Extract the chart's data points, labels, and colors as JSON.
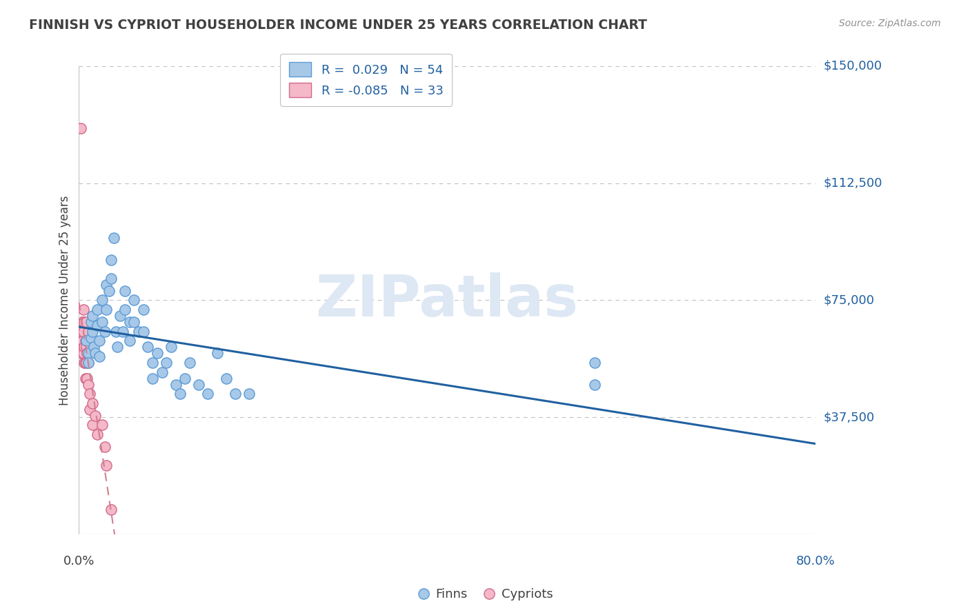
{
  "title": "FINNISH VS CYPRIOT HOUSEHOLDER INCOME UNDER 25 YEARS CORRELATION CHART",
  "source": "Source: ZipAtlas.com",
  "ylabel": "Householder Income Under 25 years",
  "ylim": [
    0,
    150000
  ],
  "xlim": [
    0,
    0.8
  ],
  "yticks": [
    0,
    37500,
    75000,
    112500,
    150000
  ],
  "ytick_labels": [
    "",
    "$37,500",
    "$75,000",
    "$112,500",
    "$150,000"
  ],
  "legend_r_finn": "R =  0.029",
  "legend_n_finn": "N = 54",
  "legend_r_cyp": "R = -0.085",
  "legend_n_cyp": "N = 33",
  "finn_color": "#a8c8e8",
  "finn_edge_color": "#5b9bd5",
  "cyp_color": "#f4b8c8",
  "cyp_edge_color": "#d4688a",
  "trend_finn_color": "#2060a0",
  "trend_cyp_color": "#d08090",
  "watermark_color": "#d8e4f0",
  "background_color": "#ffffff",
  "grid_color": "#c0c0c0",
  "title_color": "#404040",
  "label_color": "#2060a0",
  "finn_scatter": [
    [
      0.008,
      62000
    ],
    [
      0.01,
      58000
    ],
    [
      0.01,
      55000
    ],
    [
      0.013,
      68000
    ],
    [
      0.013,
      63000
    ],
    [
      0.015,
      70000
    ],
    [
      0.015,
      65000
    ],
    [
      0.016,
      60000
    ],
    [
      0.018,
      58000
    ],
    [
      0.02,
      72000
    ],
    [
      0.02,
      67000
    ],
    [
      0.022,
      62000
    ],
    [
      0.022,
      57000
    ],
    [
      0.025,
      75000
    ],
    [
      0.025,
      68000
    ],
    [
      0.028,
      65000
    ],
    [
      0.03,
      80000
    ],
    [
      0.03,
      72000
    ],
    [
      0.033,
      78000
    ],
    [
      0.035,
      88000
    ],
    [
      0.035,
      82000
    ],
    [
      0.038,
      95000
    ],
    [
      0.04,
      65000
    ],
    [
      0.042,
      60000
    ],
    [
      0.045,
      70000
    ],
    [
      0.048,
      65000
    ],
    [
      0.05,
      78000
    ],
    [
      0.05,
      72000
    ],
    [
      0.055,
      68000
    ],
    [
      0.055,
      62000
    ],
    [
      0.06,
      75000
    ],
    [
      0.06,
      68000
    ],
    [
      0.065,
      65000
    ],
    [
      0.07,
      72000
    ],
    [
      0.07,
      65000
    ],
    [
      0.075,
      60000
    ],
    [
      0.08,
      55000
    ],
    [
      0.08,
      50000
    ],
    [
      0.085,
      58000
    ],
    [
      0.09,
      52000
    ],
    [
      0.095,
      55000
    ],
    [
      0.1,
      60000
    ],
    [
      0.105,
      48000
    ],
    [
      0.11,
      45000
    ],
    [
      0.115,
      50000
    ],
    [
      0.12,
      55000
    ],
    [
      0.13,
      48000
    ],
    [
      0.14,
      45000
    ],
    [
      0.15,
      58000
    ],
    [
      0.16,
      50000
    ],
    [
      0.17,
      45000
    ],
    [
      0.185,
      45000
    ],
    [
      0.56,
      55000
    ],
    [
      0.56,
      48000
    ]
  ],
  "cyp_scatter": [
    [
      0.002,
      130000
    ],
    [
      0.002,
      65000
    ],
    [
      0.003,
      62000
    ],
    [
      0.003,
      58000
    ],
    [
      0.004,
      68000
    ],
    [
      0.004,
      62000
    ],
    [
      0.005,
      72000
    ],
    [
      0.005,
      65000
    ],
    [
      0.005,
      58000
    ],
    [
      0.006,
      68000
    ],
    [
      0.006,
      60000
    ],
    [
      0.006,
      55000
    ],
    [
      0.007,
      62000
    ],
    [
      0.007,
      55000
    ],
    [
      0.007,
      50000
    ],
    [
      0.008,
      68000
    ],
    [
      0.008,
      60000
    ],
    [
      0.008,
      55000
    ],
    [
      0.009,
      58000
    ],
    [
      0.009,
      50000
    ],
    [
      0.01,
      65000
    ],
    [
      0.01,
      55000
    ],
    [
      0.01,
      48000
    ],
    [
      0.012,
      45000
    ],
    [
      0.012,
      40000
    ],
    [
      0.015,
      42000
    ],
    [
      0.015,
      35000
    ],
    [
      0.018,
      38000
    ],
    [
      0.02,
      32000
    ],
    [
      0.025,
      35000
    ],
    [
      0.028,
      28000
    ],
    [
      0.03,
      22000
    ],
    [
      0.035,
      8000
    ]
  ]
}
